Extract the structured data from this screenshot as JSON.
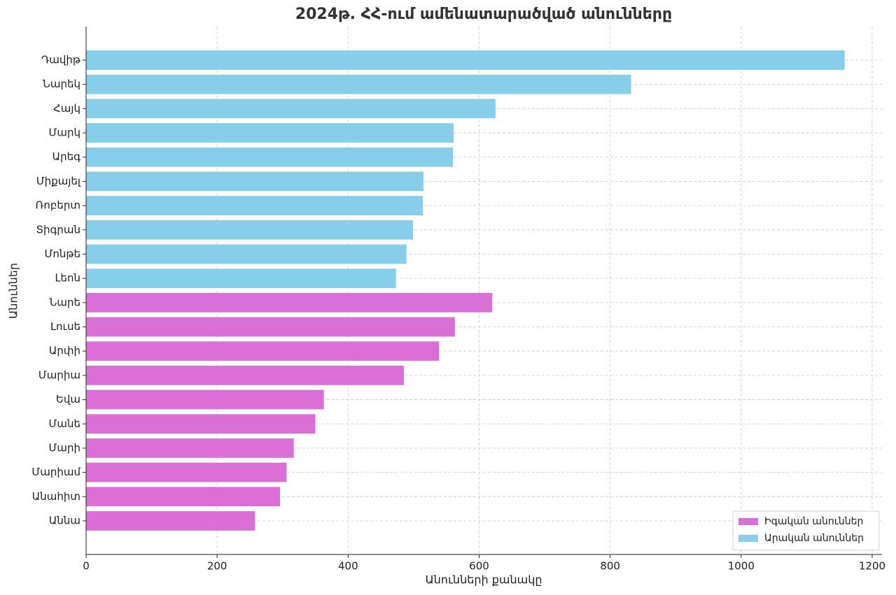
{
  "chart_data": {
    "type": "barh",
    "title": "2024թ. ՀՀ-ում ամենատարածված անունները",
    "xlabel": "Անունների քանակը",
    "ylabel": "Անուններ",
    "categories": [
      "Դավիթ",
      "Նարեկ",
      "Հայկ",
      "Մարկ",
      "Արեգ",
      "Միքայել",
      "Ռոբերտ",
      "Տիգրան",
      "Մոնթե",
      "Լեոն",
      "Նարե",
      "Լուսե",
      "Արփի",
      "Մարիա",
      "Եվա",
      "Մանե",
      "Մարի",
      "Մարիամ",
      "Անահիտ",
      "Աննա"
    ],
    "series": [
      {
        "name": "Իգական անուններ",
        "color": "#da70d6",
        "values": [
          null,
          null,
          null,
          null,
          null,
          null,
          null,
          null,
          null,
          null,
          620,
          563,
          539,
          485,
          363,
          350,
          317,
          306,
          296,
          258
        ]
      },
      {
        "name": "Արական անուններ",
        "color": "#87ceeb",
        "values": [
          1158,
          832,
          625,
          561,
          560,
          515,
          514,
          499,
          489,
          473,
          null,
          null,
          null,
          null,
          null,
          null,
          null,
          null,
          null,
          null
        ]
      }
    ],
    "xlim": [
      0,
      1215
    ],
    "xticks": [
      0,
      200,
      400,
      600,
      800,
      1000,
      1200
    ],
    "grid": true,
    "legend": "lower right"
  }
}
